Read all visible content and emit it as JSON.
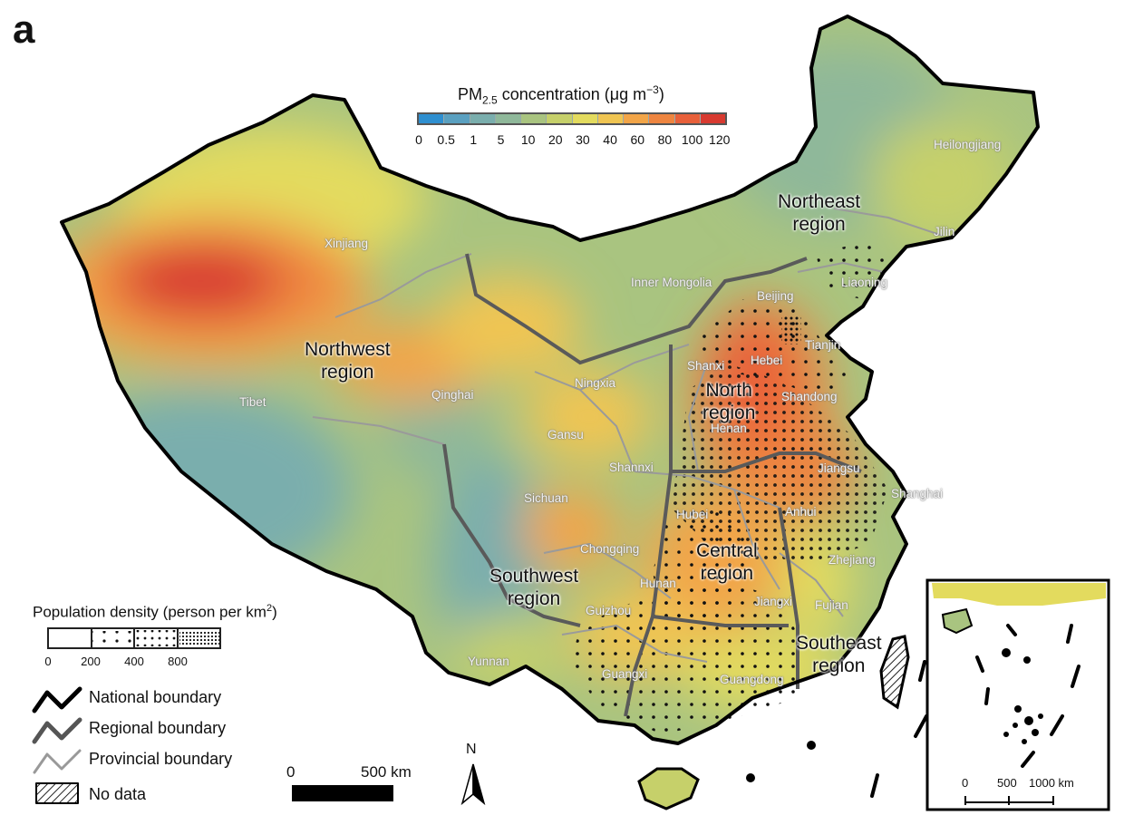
{
  "panel_label": "a",
  "colorbar": {
    "title_main": "PM",
    "title_sub": "2.5",
    "title_rest": " concentration (μg m",
    "title_sup": "−3",
    "title_close": ")",
    "ticks": [
      "0",
      "0.5",
      "1",
      "5",
      "10",
      "20",
      "30",
      "40",
      "60",
      "80",
      "100",
      "120"
    ],
    "colors": [
      "#2e8fd0",
      "#5aa0c0",
      "#7aaead",
      "#8fb89a",
      "#a9c480",
      "#c6d06a",
      "#e3db5e",
      "#f0c552",
      "#f2a548",
      "#ee8540",
      "#e8603a",
      "#d83a30"
    ]
  },
  "regions": [
    {
      "lines": [
        "Northwest",
        "region"
      ]
    },
    {
      "lines": [
        "Northeast",
        "region"
      ]
    },
    {
      "lines": [
        "North",
        "region"
      ]
    },
    {
      "lines": [
        "Central",
        "region"
      ]
    },
    {
      "lines": [
        "Southwest",
        "region"
      ]
    },
    {
      "lines": [
        "Southeast",
        "region"
      ]
    }
  ],
  "provinces": [
    "Xinjiang",
    "Tibet",
    "Qinghai",
    "Gansu",
    "Ningxia",
    "Inner Mongolia",
    "Heilongjiang",
    "Jilin",
    "Liaoning",
    "Beijing",
    "Tianjin",
    "Hebei",
    "Shanxi",
    "Shandong",
    "Henan",
    "Shannxi",
    "Jiangsu",
    "Shanghai",
    "Anhui",
    "Hubei",
    "Sichuan",
    "Chongqing",
    "Hunan",
    "Jiangxi",
    "Zhejiang",
    "Fujian",
    "Guizhou",
    "Yunnan",
    "Guangxi",
    "Guangdong"
  ],
  "population_legend": {
    "title": "Population density (person per km",
    "title_sup": "2",
    "title_close": ")",
    "ticks": [
      "0",
      "200",
      "400",
      "800"
    ]
  },
  "boundary_legend": [
    {
      "label": "National boundary",
      "color": "#000000",
      "icon": "zigzag-line-icon"
    },
    {
      "label": "Regional boundary",
      "color": "#555555",
      "icon": "zigzag-line-icon"
    },
    {
      "label": "Provincial boundary",
      "color": "#999999",
      "icon": "zigzag-line-icon"
    },
    {
      "label": "No data",
      "color": "#222222",
      "icon": "hatched-box-icon"
    }
  ],
  "scale_bar": {
    "start": "0",
    "end": "500 km"
  },
  "north_arrow": {
    "label": "N"
  },
  "inset": {
    "scale": [
      "0",
      "500",
      "1000 km"
    ]
  }
}
